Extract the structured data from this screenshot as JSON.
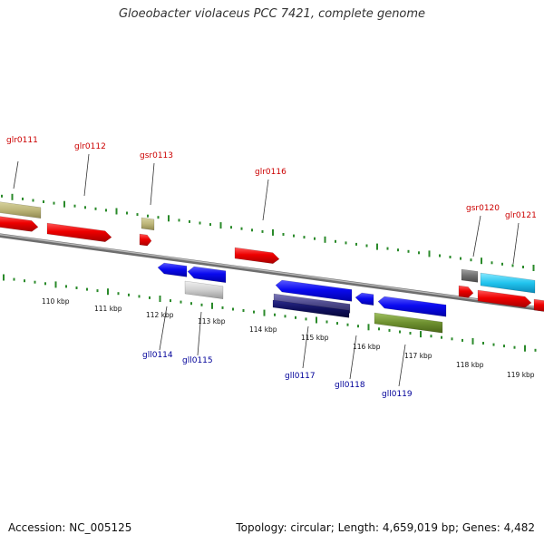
{
  "header": {
    "title": "Gloeobacter violaceus PCC 7421, complete genome"
  },
  "footer": {
    "accession": "Accession: NC_005125",
    "topology": "Topology: circular; Length: 4,659,019 bp; Genes: 4,482"
  },
  "colors": {
    "forward_label": "#cc0000",
    "reverse_label": "#000099",
    "backbone": "#8a8a8a",
    "tick": "#2a8a2a"
  },
  "scale_labels": [
    "110 kbp",
    "111 kbp",
    "112 kbp",
    "113 kbp",
    "114 kbp",
    "115 kbp",
    "116 kbp",
    "117 kbp",
    "118 kbp",
    "119 kbp"
  ],
  "forward_gene_labels": [
    "glr0111",
    "glr0112",
    "gsr0113",
    "glr0116",
    "gsr0120",
    "glr0121"
  ],
  "reverse_gene_labels": [
    "gll0114",
    "gll0115",
    "gll0117",
    "gll0118",
    "gll0119"
  ]
}
